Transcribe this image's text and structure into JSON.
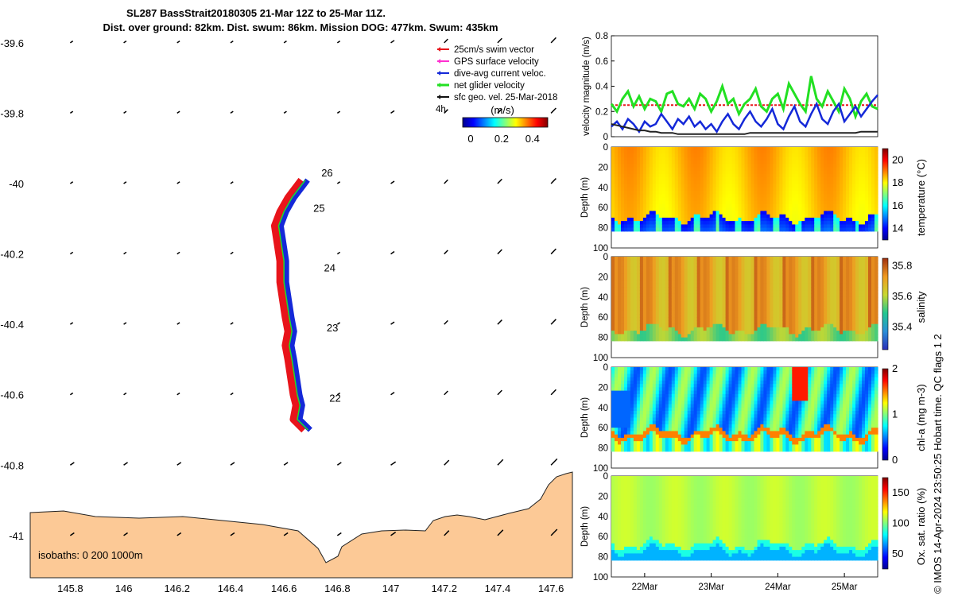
{
  "title_line1": "SL287 BassStrait20180305 21-Mar 12Z to 25-Mar 11Z.",
  "title_line2": "Dist. over ground: 82km. Dist. swum: 86km. Mission DOG: 477km. Swum: 435km",
  "footer": "© IMOS 14-Apr-2024 23:50:25 Hobart time. QC flags 1 2",
  "map": {
    "xlim": [
      145.65,
      147.68
    ],
    "ylim": [
      -41.12,
      -39.58
    ],
    "x_ticks": [
      145.8,
      146,
      146.2,
      146.4,
      146.6,
      146.8,
      147,
      147.2,
      147.4,
      147.6
    ],
    "x_tick_labels": [
      "145.8",
      "146",
      "146.2",
      "146.4",
      "146.6",
      "146.8",
      "147",
      "147.2",
      "147.4",
      "147.6"
    ],
    "y_ticks": [
      -39.6,
      -39.8,
      -40,
      -40.2,
      -40.4,
      -40.6,
      -40.8,
      -41
    ],
    "y_tick_labels": [
      "-39.6",
      "-39.8",
      "-40",
      "-40.2",
      "-40.4",
      "-40.6",
      "-40.8",
      "-41"
    ],
    "legend": [
      "25cm/s swim vector",
      "GPS surface velocity",
      "dive-avg current veloc.",
      "net glider velocity",
      "sfc geo. vel. 25-Mar-2018"
    ],
    "legend_colors": [
      "#e8141a",
      "#ff2fd0",
      "#1428d8",
      "#22e022",
      "#111111"
    ],
    "legend_extra": "4h",
    "colorbar_label": "(m/s)",
    "colorbar_ticks": [
      "0",
      "0.2",
      "0.4"
    ],
    "isobath_label": "isobaths: 0   200  1000m",
    "day_labels": [
      "26",
      "25",
      "24",
      "23",
      "22"
    ],
    "day_positions": [
      [
        146.74,
        -39.98
      ],
      [
        146.71,
        -40.08
      ],
      [
        146.75,
        -40.25
      ],
      [
        146.76,
        -40.42
      ],
      [
        146.77,
        -40.62
      ]
    ],
    "track": [
      [
        146.69,
        -40.7
      ],
      [
        146.65,
        -40.67
      ],
      [
        146.66,
        -40.63
      ],
      [
        146.65,
        -40.6
      ],
      [
        146.64,
        -40.55
      ],
      [
        146.63,
        -40.5
      ],
      [
        146.62,
        -40.46
      ],
      [
        146.63,
        -40.42
      ],
      [
        146.62,
        -40.38
      ],
      [
        146.61,
        -40.33
      ],
      [
        146.6,
        -40.28
      ],
      [
        146.6,
        -40.22
      ],
      [
        146.59,
        -40.17
      ],
      [
        146.58,
        -40.12
      ],
      [
        146.6,
        -40.08
      ],
      [
        146.63,
        -40.04
      ],
      [
        146.68,
        -39.99
      ]
    ]
  },
  "chart_data": [
    {
      "type": "line",
      "title": "",
      "ylabel": "velocity magnitude (m/s)",
      "ylim": [
        0,
        0.8
      ],
      "y_ticks": [
        0,
        0.2,
        0.4,
        0.6,
        0.8
      ],
      "y_tick_labels": [
        "0",
        "0.2",
        "0.4",
        "0.6",
        "0.8"
      ],
      "x_range_days": [
        21.5,
        25.5
      ],
      "series": [
        {
          "name": "25cm/s swim vector",
          "color": "#e8141a",
          "values": [
            0.25,
            0.25,
            0.25,
            0.25,
            0.25,
            0.25,
            0.25,
            0.25,
            0.25,
            0.25,
            0.25,
            0.25,
            0.25,
            0.25,
            0.25,
            0.25,
            0.25,
            0.25,
            0.25,
            0.25,
            0.25,
            0.25,
            0.25,
            0.25,
            0.25,
            0.25,
            0.25,
            0.25,
            0.25,
            0.25,
            0.25,
            0.25,
            0.25,
            0.25,
            0.25,
            0.25,
            0.25,
            0.25,
            0.25,
            0.25,
            0.25,
            0.25,
            0.25,
            0.25,
            0.25,
            0.25,
            0.25,
            0.25,
            0.25
          ]
        },
        {
          "name": "net glider velocity",
          "color": "#22e022",
          "values": [
            0.26,
            0.2,
            0.3,
            0.36,
            0.24,
            0.32,
            0.22,
            0.3,
            0.28,
            0.2,
            0.34,
            0.36,
            0.26,
            0.24,
            0.3,
            0.22,
            0.34,
            0.3,
            0.2,
            0.28,
            0.4,
            0.26,
            0.3,
            0.18,
            0.26,
            0.3,
            0.38,
            0.24,
            0.2,
            0.3,
            0.34,
            0.22,
            0.42,
            0.34,
            0.26,
            0.2,
            0.48,
            0.3,
            0.24,
            0.36,
            0.28,
            0.2,
            0.38,
            0.3,
            0.16,
            0.28,
            0.34,
            0.24,
            0.22
          ]
        },
        {
          "name": "dive-avg current veloc.",
          "color": "#1428d8",
          "values": [
            0.08,
            0.12,
            0.06,
            0.14,
            0.1,
            0.04,
            0.12,
            0.08,
            0.1,
            0.18,
            0.12,
            0.06,
            0.14,
            0.1,
            0.16,
            0.08,
            0.12,
            0.06,
            0.1,
            0.04,
            0.12,
            0.18,
            0.1,
            0.06,
            0.14,
            0.2,
            0.12,
            0.08,
            0.14,
            0.22,
            0.1,
            0.06,
            0.16,
            0.24,
            0.12,
            0.08,
            0.18,
            0.26,
            0.14,
            0.1,
            0.2,
            0.26,
            0.12,
            0.18,
            0.24,
            0.16,
            0.22,
            0.28,
            0.33
          ]
        },
        {
          "name": "sfc geo. vel.",
          "color": "#222222",
          "values": [
            0.1,
            0.09,
            0.08,
            0.07,
            0.06,
            0.05,
            0.05,
            0.04,
            0.04,
            0.03,
            0.03,
            0.03,
            0.02,
            0.02,
            0.02,
            0.02,
            0.02,
            0.02,
            0.02,
            0.02,
            0.02,
            0.02,
            0.02,
            0.02,
            0.02,
            0.03,
            0.03,
            0.03,
            0.03,
            0.03,
            0.03,
            0.03,
            0.03,
            0.03,
            0.03,
            0.03,
            0.03,
            0.03,
            0.03,
            0.03,
            0.03,
            0.03,
            0.03,
            0.03,
            0.03,
            0.04,
            0.04,
            0.04,
            0.04
          ]
        }
      ]
    },
    {
      "type": "heatmap",
      "variable": "temperature (°C)",
      "ylabel": "Depth (m)",
      "ylim": [
        100,
        0
      ],
      "y_tick_labels": [
        "0",
        "20",
        "40",
        "60",
        "80",
        "100"
      ],
      "colorbar_ticks": [
        14,
        16,
        18,
        20
      ],
      "colorbar_labels": [
        "14",
        "16",
        "18",
        "20"
      ],
      "cmin": 13,
      "cmax": 21
    },
    {
      "type": "heatmap",
      "variable": "salinity",
      "ylabel": "Depth (m)",
      "ylim": [
        100,
        0
      ],
      "y_tick_labels": [
        "0",
        "20",
        "40",
        "60",
        "80",
        "100"
      ],
      "colorbar_ticks": [
        35.4,
        35.6,
        35.8
      ],
      "colorbar_labels": [
        "35.4",
        "35.6",
        "35.8"
      ],
      "cmin": 35.25,
      "cmax": 35.85
    },
    {
      "type": "heatmap",
      "variable": "chl-a (mg m-3)",
      "ylabel": "Depth (m)",
      "ylim": [
        100,
        0
      ],
      "y_tick_labels": [
        "0",
        "20",
        "40",
        "60",
        "80",
        "100"
      ],
      "colorbar_ticks": [
        0,
        1,
        2
      ],
      "colorbar_labels": [
        "0",
        "1",
        "2"
      ],
      "cmin": 0,
      "cmax": 2
    },
    {
      "type": "heatmap",
      "variable": "Ox. sat. ratio (%)",
      "ylabel": "Depth (m)",
      "ylim": [
        100,
        0
      ],
      "y_tick_labels": [
        "0",
        "20",
        "40",
        "60",
        "80",
        "100"
      ],
      "colorbar_ticks": [
        50,
        100,
        150
      ],
      "colorbar_labels": [
        "50",
        "100",
        "150"
      ],
      "cmin": 25,
      "cmax": 175,
      "x_ticks_days": [
        22,
        23,
        24,
        25
      ],
      "x_tick_labels": [
        "22Mar",
        "23Mar",
        "24Mar",
        "25Mar"
      ]
    }
  ]
}
